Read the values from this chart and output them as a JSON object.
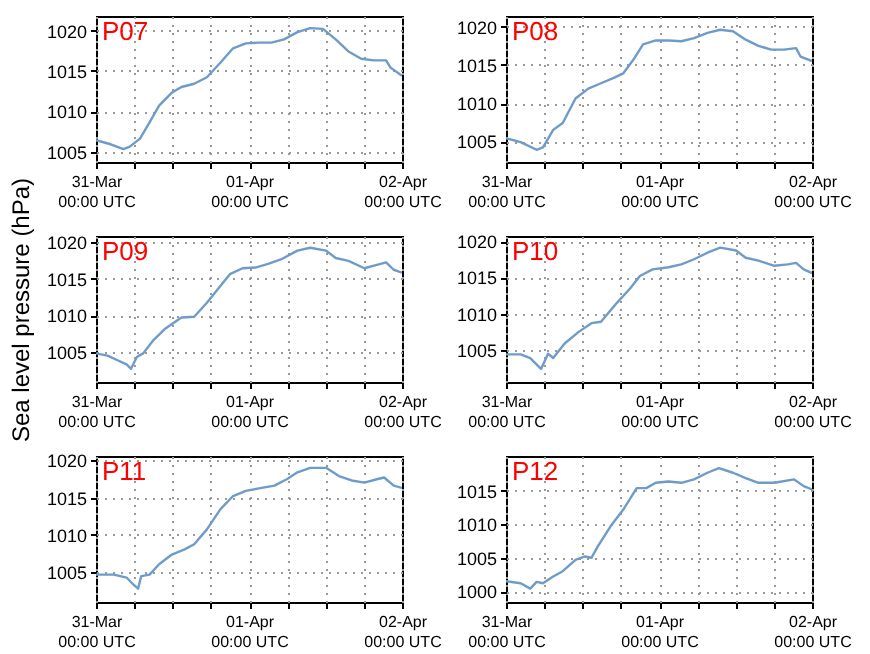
{
  "chart_data": [
    {
      "type": "line",
      "title": "P07",
      "xlim": [
        "--03-31T00:00",
        "--04-02T00:00"
      ],
      "xticks": [
        {
          "value": "--03-31T00:00",
          "label": "31-Mar\n00:00 UTC"
        },
        {
          "value": "--03-31T06:00",
          "label": null
        },
        {
          "value": "--03-31T12:00",
          "label": null
        },
        {
          "value": "--03-31T18:00",
          "label": null
        },
        {
          "value": "--04-01T00:00",
          "label": "01-Apr\n00:00 UTC"
        },
        {
          "value": "--04-01T06:00",
          "label": null
        },
        {
          "value": "--04-01T12:00",
          "label": null
        },
        {
          "value": "--04-01T18:00",
          "label": null
        },
        {
          "value": "--04-02T00:00",
          "label": "02-Apr\n00:00 UTC"
        }
      ],
      "ylim": [
        1003.7,
        1021.8
      ],
      "yticks": [
        1005,
        1010,
        1015,
        1020
      ],
      "grid": true,
      "series": [
        {
          "color": "#6f9bc8",
          "x": [
            "--03-31T00:00",
            "--03-31T02:18",
            "--03-31T04:18",
            "--03-31T05:18",
            "--03-31T06:54",
            "--03-31T08:24",
            "--03-31T09:54",
            "--03-31T11:54",
            "--03-31T13:24",
            "--03-31T15:24",
            "--03-31T17:24",
            "--03-31T19:30",
            "--03-31T21:30",
            "--03-31T23:30",
            "--04-01T01:30",
            "--04-01T03:30",
            "--04-01T05:30",
            "--04-01T07:36",
            "--04-01T09:36",
            "--04-01T11:36",
            "--04-01T13:36",
            "--04-01T15:36",
            "--04-01T17:36",
            "--04-01T19:36",
            "--04-01T21:30",
            "--04-01T22:12",
            "--04-02T00:00"
          ],
          "values": [
            1006.4,
            1005.9,
            1005.3,
            1005.6,
            1006.6,
            1008.6,
            1010.7,
            1012.3,
            1013.0,
            1013.4,
            1014.2,
            1016.0,
            1017.8,
            1018.4,
            1018.5,
            1018.5,
            1018.9,
            1019.8,
            1020.3,
            1020.2,
            1018.9,
            1017.4,
            1016.5,
            1016.3,
            1016.3,
            1015.4,
            1014.4
          ]
        }
      ]
    },
    {
      "type": "line",
      "title": "P08",
      "xlim": [
        "--03-31T00:00",
        "--04-02T00:00"
      ],
      "xticks": [
        {
          "value": "--03-31T00:00",
          "label": "31-Mar\n00:00 UTC"
        },
        {
          "value": "--03-31T06:00",
          "label": null
        },
        {
          "value": "--03-31T12:00",
          "label": null
        },
        {
          "value": "--03-31T18:00",
          "label": null
        },
        {
          "value": "--04-01T00:00",
          "label": "01-Apr\n00:00 UTC"
        },
        {
          "value": "--04-01T06:00",
          "label": null
        },
        {
          "value": "--04-01T12:00",
          "label": null
        },
        {
          "value": "--04-01T18:00",
          "label": null
        },
        {
          "value": "--04-02T00:00",
          "label": "02-Apr\n00:00 UTC"
        }
      ],
      "ylim": [
        1002.3,
        1021.4
      ],
      "yticks": [
        1005,
        1010,
        1015,
        1020
      ],
      "grid": true,
      "series": [
        {
          "color": "#6f9bc8",
          "x": [
            "--03-31T00:00",
            "--03-31T02:18",
            "--03-31T04:48",
            "--03-31T05:48",
            "--03-31T07:24",
            "--03-31T08:54",
            "--03-31T10:54",
            "--03-31T12:54",
            "--03-31T14:54",
            "--03-31T16:54",
            "--03-31T18:24",
            "--03-31T20:00",
            "--03-31T21:30",
            "--03-31T23:30",
            "--04-01T01:30",
            "--04-01T03:30",
            "--04-01T05:30",
            "--04-01T07:36",
            "--04-01T09:36",
            "--04-01T11:36",
            "--04-01T13:36",
            "--04-01T15:36",
            "--04-01T17:36",
            "--04-01T19:36",
            "--04-01T21:30",
            "--04-01T22:12",
            "--04-02T00:00"
          ],
          "values": [
            1005.4,
            1004.9,
            1003.9,
            1004.2,
            1006.5,
            1007.4,
            1010.6,
            1011.9,
            1012.6,
            1013.3,
            1013.9,
            1015.7,
            1017.7,
            1018.2,
            1018.2,
            1018.1,
            1018.5,
            1019.2,
            1019.6,
            1019.4,
            1018.3,
            1017.5,
            1017.0,
            1017.0,
            1017.2,
            1016.1,
            1015.5
          ]
        }
      ]
    },
    {
      "type": "line",
      "title": "P09",
      "ylabel": "Sea level pressure (hPa)",
      "xlim": [
        "--03-31T00:00",
        "--04-02T00:00"
      ],
      "xticks": [
        {
          "value": "--03-31T00:00",
          "label": "31-Mar\n00:00 UTC"
        },
        {
          "value": "--03-31T06:00",
          "label": null
        },
        {
          "value": "--03-31T12:00",
          "label": null
        },
        {
          "value": "--03-31T18:00",
          "label": null
        },
        {
          "value": "--04-01T00:00",
          "label": "01-Apr\n00:00 UTC"
        },
        {
          "value": "--04-01T06:00",
          "label": null
        },
        {
          "value": "--04-01T12:00",
          "label": null
        },
        {
          "value": "--04-01T18:00",
          "label": null
        },
        {
          "value": "--04-02T00:00",
          "label": "02-Apr\n00:00 UTC"
        }
      ],
      "ylim": [
        1000.9,
        1020.8
      ],
      "yticks": [
        1005,
        1010,
        1015,
        1020
      ],
      "grid": true,
      "series": [
        {
          "color": "#6f9bc8",
          "x": [
            "--03-31T00:00",
            "--03-31T01:48",
            "--03-31T03:18",
            "--03-31T04:48",
            "--03-31T05:30",
            "--03-31T06:24",
            "--03-31T07:24",
            "--03-31T08:54",
            "--03-31T10:54",
            "--03-31T13:24",
            "--03-31T15:24",
            "--03-31T17:24",
            "--03-31T19:30",
            "--03-31T21:00",
            "--03-31T23:00",
            "--04-01T01:00",
            "--04-01T03:00",
            "--04-01T05:00",
            "--04-01T07:36",
            "--04-01T09:36",
            "--04-01T12:06",
            "--04-01T13:36",
            "--04-01T15:36",
            "--04-01T18:06",
            "--04-01T20:12",
            "--04-01T21:30",
            "--04-01T22:42",
            "--04-02T00:00"
          ],
          "values": [
            1004.8,
            1004.5,
            1003.9,
            1003.3,
            1002.7,
            1004.3,
            1004.8,
            1006.5,
            1008.2,
            1009.7,
            1009.8,
            1011.7,
            1014.0,
            1015.6,
            1016.4,
            1016.5,
            1017.0,
            1017.6,
            1018.8,
            1019.2,
            1018.8,
            1017.8,
            1017.4,
            1016.4,
            1016.9,
            1017.2,
            1016.2,
            1015.8
          ]
        }
      ]
    },
    {
      "type": "line",
      "title": "P10",
      "xlim": [
        "--03-31T00:00",
        "--04-02T00:00"
      ],
      "xticks": [
        {
          "value": "--03-31T00:00",
          "label": "31-Mar\n00:00 UTC"
        },
        {
          "value": "--03-31T06:00",
          "label": null
        },
        {
          "value": "--03-31T12:00",
          "label": null
        },
        {
          "value": "--03-31T18:00",
          "label": null
        },
        {
          "value": "--04-01T00:00",
          "label": "01-Apr\n00:00 UTC"
        },
        {
          "value": "--04-01T06:00",
          "label": null
        },
        {
          "value": "--04-01T12:00",
          "label": null
        },
        {
          "value": "--04-01T18:00",
          "label": null
        },
        {
          "value": "--04-02T00:00",
          "label": "02-Apr\n00:00 UTC"
        }
      ],
      "ylim": [
        1000.6,
        1020.7
      ],
      "yticks": [
        1005,
        1010,
        1015,
        1020
      ],
      "grid": true,
      "series": [
        {
          "color": "#6f9bc8",
          "x": [
            "--03-31T00:00",
            "--03-31T02:18",
            "--03-31T03:48",
            "--03-31T05:30",
            "--03-31T06:36",
            "--03-31T07:24",
            "--03-31T09:12",
            "--03-31T11:24",
            "--03-31T13:24",
            "--03-31T14:54",
            "--03-31T17:24",
            "--03-31T19:30",
            "--03-31T21:00",
            "--03-31T23:00",
            "--04-01T01:30",
            "--04-01T03:30",
            "--04-01T05:30",
            "--04-01T07:36",
            "--04-01T09:36",
            "--04-01T12:06",
            "--04-01T13:36",
            "--04-01T15:36",
            "--04-01T18:06",
            "--04-01T20:12",
            "--04-01T21:30",
            "--04-01T22:42",
            "--04-02T00:00"
          ],
          "values": [
            1004.4,
            1004.4,
            1003.9,
            1002.4,
            1004.5,
            1003.9,
            1005.9,
            1007.5,
            1008.7,
            1008.9,
            1011.5,
            1013.5,
            1015.2,
            1016.1,
            1016.4,
            1016.8,
            1017.5,
            1018.4,
            1019.1,
            1018.7,
            1017.7,
            1017.3,
            1016.6,
            1016.8,
            1017.0,
            1016.1,
            1015.6
          ]
        }
      ]
    },
    {
      "type": "line",
      "title": "P11",
      "xlim": [
        "--03-31T00:00",
        "--04-02T00:00"
      ],
      "xticks": [
        {
          "value": "--03-31T00:00",
          "label": "31-Mar\n00:00 UTC"
        },
        {
          "value": "--03-31T06:00",
          "label": null
        },
        {
          "value": "--03-31T12:00",
          "label": null
        },
        {
          "value": "--03-31T18:00",
          "label": null
        },
        {
          "value": "--04-01T00:00",
          "label": "01-Apr\n00:00 UTC"
        },
        {
          "value": "--04-01T06:00",
          "label": null
        },
        {
          "value": "--04-01T12:00",
          "label": null
        },
        {
          "value": "--04-01T18:00",
          "label": null
        },
        {
          "value": "--04-02T00:00",
          "label": "02-Apr\n00:00 UTC"
        }
      ],
      "ylim": [
        1000.9,
        1020.6
      ],
      "yticks": [
        1005,
        1010,
        1015,
        1020
      ],
      "grid": true,
      "series": [
        {
          "color": "#6f9bc8",
          "x": [
            "--03-31T00:00",
            "--03-31T02:48",
            "--03-31T04:48",
            "--03-31T05:48",
            "--03-31T06:36",
            "--03-31T07:06",
            "--03-31T08:24",
            "--03-31T09:54",
            "--03-31T11:54",
            "--03-31T13:54",
            "--03-31T15:24",
            "--03-31T17:24",
            "--03-31T19:30",
            "--03-31T21:30",
            "--03-31T23:30",
            "--04-01T02:00",
            "--04-01T04:00",
            "--04-01T06:00",
            "--04-01T07:36",
            "--04-01T09:36",
            "--04-01T12:06",
            "--04-01T14:06",
            "--04-01T16:06",
            "--04-01T18:06",
            "--04-01T20:12",
            "--04-01T21:12",
            "--04-01T22:42",
            "--04-02T00:00"
          ],
          "values": [
            1004.6,
            1004.6,
            1004.2,
            1003.3,
            1002.7,
            1004.4,
            1004.6,
            1006.0,
            1007.3,
            1008.0,
            1008.7,
            1010.7,
            1013.4,
            1015.2,
            1015.9,
            1016.3,
            1016.6,
            1017.5,
            1018.4,
            1019.0,
            1019.0,
            1017.9,
            1017.3,
            1017.0,
            1017.5,
            1017.7,
            1016.6,
            1016.3
          ]
        }
      ]
    },
    {
      "type": "line",
      "title": "P12",
      "xlim": [
        "--03-31T00:00",
        "--04-02T00:00"
      ],
      "xticks": [
        {
          "value": "--03-31T00:00",
          "label": "31-Mar\n00:00 UTC"
        },
        {
          "value": "--03-31T06:00",
          "label": null
        },
        {
          "value": "--03-31T12:00",
          "label": null
        },
        {
          "value": "--03-31T18:00",
          "label": null
        },
        {
          "value": "--04-01T00:00",
          "label": "01-Apr\n00:00 UTC"
        },
        {
          "value": "--04-01T06:00",
          "label": null
        },
        {
          "value": "--04-01T12:00",
          "label": null
        },
        {
          "value": "--04-01T18:00",
          "label": null
        },
        {
          "value": "--04-02T00:00",
          "label": "02-Apr\n00:00 UTC"
        }
      ],
      "ylim": [
        998.4,
        1020.2
      ],
      "yticks": [
        1000,
        1005,
        1010,
        1015
      ],
      "grid": true,
      "series": [
        {
          "color": "#6f9bc8",
          "x": [
            "--03-31T00:00",
            "--03-31T02:18",
            "--03-31T03:48",
            "--03-31T04:48",
            "--03-31T05:48",
            "--03-31T07:24",
            "--03-31T08:54",
            "--03-31T10:54",
            "--03-31T12:24",
            "--03-31T13:24",
            "--03-31T14:24",
            "--03-31T16:24",
            "--03-31T18:24",
            "--03-31T20:30",
            "--03-31T22:00",
            "--03-31T23:30",
            "--04-01T01:30",
            "--04-01T03:30",
            "--04-01T05:30",
            "--04-01T07:36",
            "--04-01T09:24",
            "--04-01T11:36",
            "--04-01T13:36",
            "--04-01T15:36",
            "--04-01T18:06",
            "--04-01T21:12",
            "--04-01T22:42",
            "--04-02T00:00"
          ],
          "values": [
            1001.5,
            1001.2,
            1000.4,
            1001.4,
            1001.2,
            1002.2,
            1003.0,
            1004.7,
            1005.2,
            1005.0,
            1006.7,
            1009.7,
            1012.2,
            1015.4,
            1015.4,
            1016.2,
            1016.4,
            1016.2,
            1016.7,
            1017.7,
            1018.4,
            1017.7,
            1016.9,
            1016.2,
            1016.2,
            1016.7,
            1015.7,
            1015.2
          ]
        }
      ]
    }
  ]
}
